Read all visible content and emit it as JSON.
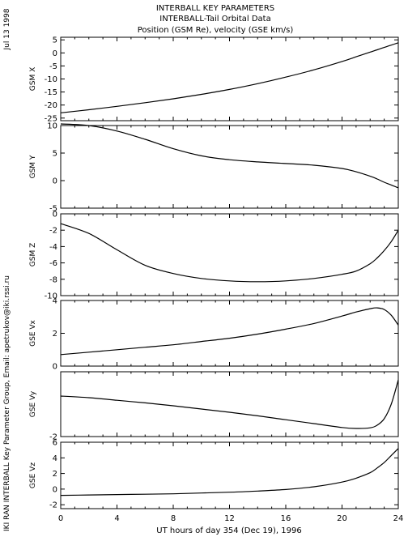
{
  "header": {
    "line1": "INTERBALL KEY PARAMETERS",
    "line2": "INTERBALL-Tail Orbital Data",
    "line3": "Position (GSM Re), velocity (GSE km/s)"
  },
  "side_text": {
    "date": "Jul 13 1998",
    "credit": "IKI RAN INTERBALL Key Parameter Group, Email: apetrukov@iki.rssi.ru"
  },
  "colors": {
    "line": "#000000",
    "background": "#ffffff"
  },
  "chart_data": {
    "type": "line",
    "xlabel": "UT hours of day 354 (Dec 19), 1996",
    "xlim": [
      0,
      24
    ],
    "xticks": [
      0,
      4,
      8,
      12,
      16,
      20,
      24
    ],
    "x": [
      0,
      2,
      4,
      6,
      8,
      10,
      12,
      14,
      16,
      18,
      20,
      21,
      22,
      22.5,
      23,
      23.5,
      24
    ],
    "panels": [
      {
        "ylabel": "GSM X",
        "ylim": [
          -26,
          6
        ],
        "yticks": [
          5,
          0,
          -5,
          -10,
          -15,
          -20,
          -25
        ],
        "values": [
          -23,
          -21.8,
          -20.5,
          -19.1,
          -17.6,
          -15.9,
          -14,
          -11.8,
          -9.3,
          -6.5,
          -3.3,
          -1.5,
          0.3,
          1.2,
          2.1,
          3,
          3.9
        ]
      },
      {
        "ylabel": "GSM Y",
        "ylim": [
          -5,
          10
        ],
        "yticks": [
          10,
          5,
          0,
          -5
        ],
        "values": [
          10.3,
          10,
          9,
          7.5,
          5.8,
          4.5,
          3.8,
          3.4,
          3.1,
          2.8,
          2.2,
          1.6,
          0.8,
          0.3,
          -0.3,
          -0.8,
          -1.3
        ]
      },
      {
        "ylabel": "GSM Z",
        "ylim": [
          -10,
          0
        ],
        "yticks": [
          0,
          -2,
          -4,
          -6,
          -8,
          -10
        ],
        "values": [
          -1.2,
          -2.4,
          -4.4,
          -6.3,
          -7.3,
          -7.9,
          -8.2,
          -8.3,
          -8.2,
          -7.9,
          -7.4,
          -7,
          -6.1,
          -5.4,
          -4.5,
          -3.4,
          -2
        ]
      },
      {
        "ylabel": "GSE Vx",
        "ylim": [
          0,
          4
        ],
        "yticks": [
          4,
          2,
          0
        ],
        "values": [
          0.7,
          0.85,
          1,
          1.15,
          1.3,
          1.5,
          1.7,
          1.95,
          2.25,
          2.6,
          3.05,
          3.3,
          3.5,
          3.55,
          3.45,
          3.1,
          2.5
        ]
      },
      {
        "ylabel": "GSE Vy",
        "ylim": [
          -2,
          0
        ],
        "yticks": [
          -2
        ],
        "values": [
          -0.75,
          -0.8,
          -0.88,
          -0.96,
          -1.05,
          -1.15,
          -1.25,
          -1.36,
          -1.48,
          -1.6,
          -1.72,
          -1.75,
          -1.73,
          -1.65,
          -1.45,
          -1,
          -0.25
        ]
      },
      {
        "ylabel": "GSE Vz",
        "ylim": [
          -2.5,
          6
        ],
        "yticks": [
          6,
          4,
          2,
          0,
          -2
        ],
        "values": [
          -0.8,
          -0.75,
          -0.7,
          -0.65,
          -0.6,
          -0.5,
          -0.4,
          -0.25,
          -0.05,
          0.3,
          0.9,
          1.4,
          2.1,
          2.7,
          3.4,
          4.3,
          5.2
        ]
      }
    ]
  }
}
